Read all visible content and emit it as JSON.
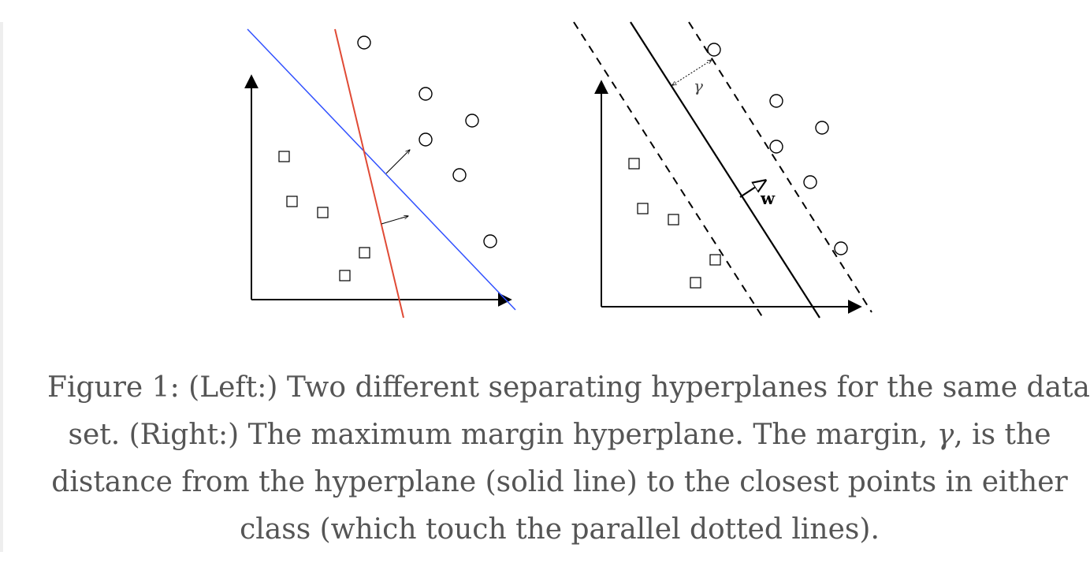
{
  "figure": {
    "right_panel": {
      "weight_label": "w",
      "margin_label": "γ"
    },
    "colors": {
      "separator_blue": "#3050ff",
      "separator_red": "#e04a35",
      "ink": "#000000",
      "caption_text": "#555555"
    },
    "caption": {
      "line1": "Figure 1: (Left:) Two different separating hyperplanes for the same data",
      "line2_a": "set. (Right:) The maximum margin hyperplane. The margin,",
      "line2_math": "γ",
      "line2_b": ", is the",
      "line3": "distance from the hyperplane (solid line) to the closest points in either",
      "line4": "class (which touch the parallel dotted lines)."
    }
  }
}
